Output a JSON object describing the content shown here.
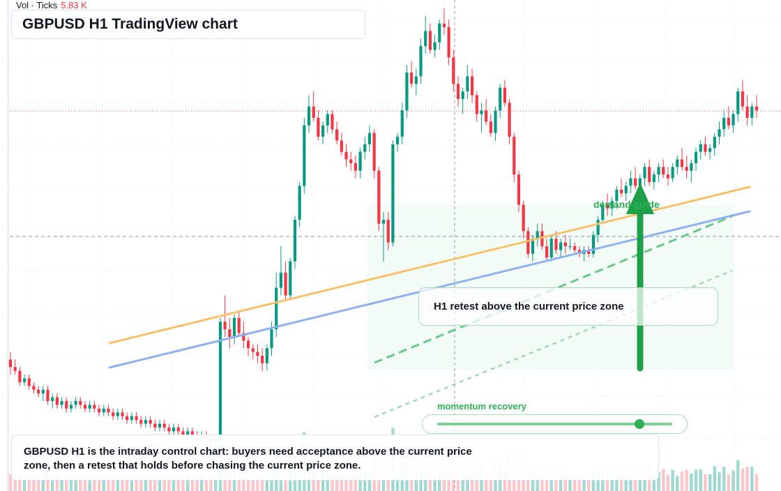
{
  "title": "GBPUSD H1 TradingView chart",
  "volume_legend": {
    "label": "Vol · Ticks",
    "value": "5.83 K"
  },
  "annotations": {
    "demand_label": "demand guide",
    "retest_label": "H1 retest above the current price zone",
    "momentum_label": "momentum recovery",
    "momentum_level": 0.86
  },
  "summary": "GBPUSD H1 is the intraday control chart: buyers need acceptance above the current price zone, then a retest that holds before chasing the current price zone.",
  "colors": {
    "up": "#089981",
    "down": "#f23645",
    "accent_green": "#2fae56",
    "trend_orange": "#f7c16b",
    "trend_blue": "#8fb0ee"
  },
  "chart_data": {
    "type": "candlestick",
    "symbol": "GBPUSD",
    "timeframe": "H1",
    "candles": [
      [
        100,
        102,
        96,
        98
      ],
      [
        98,
        100,
        96,
        97
      ],
      [
        97,
        98,
        93,
        94
      ],
      [
        94,
        96,
        93,
        95
      ],
      [
        95,
        96,
        92,
        93
      ],
      [
        93,
        94,
        91,
        92
      ],
      [
        92,
        93,
        90,
        91
      ],
      [
        91,
        93,
        89,
        92
      ],
      [
        92,
        93,
        88,
        89
      ],
      [
        89,
        91,
        87,
        90
      ],
      [
        90,
        91,
        87,
        88
      ],
      [
        88,
        90,
        87,
        89
      ],
      [
        89,
        90,
        86,
        87
      ],
      [
        87,
        89,
        86,
        88
      ],
      [
        88,
        90,
        87,
        89
      ],
      [
        89,
        90,
        87,
        88
      ],
      [
        88,
        89,
        86,
        87
      ],
      [
        87,
        89,
        86,
        88
      ],
      [
        88,
        89,
        86,
        87
      ],
      [
        87,
        88,
        85,
        86
      ],
      [
        86,
        88,
        85,
        87
      ],
      [
        87,
        88,
        85,
        86
      ],
      [
        86,
        87,
        84,
        85
      ],
      [
        85,
        87,
        84,
        86
      ],
      [
        86,
        87,
        84,
        85
      ],
      [
        85,
        86,
        83,
        84
      ],
      [
        84,
        86,
        83,
        85
      ],
      [
        85,
        86,
        83,
        84
      ],
      [
        84,
        85,
        82,
        83
      ],
      [
        83,
        85,
        82,
        84
      ],
      [
        84,
        85,
        82,
        83
      ],
      [
        83,
        84,
        81,
        82
      ],
      [
        82,
        84,
        81,
        83
      ],
      [
        83,
        84,
        81,
        82
      ],
      [
        82,
        83,
        80,
        81
      ],
      [
        81,
        83,
        80,
        82
      ],
      [
        82,
        83,
        80,
        81
      ],
      [
        81,
        82,
        79,
        80
      ],
      [
        80,
        82,
        79,
        81
      ],
      [
        81,
        82,
        79,
        80
      ],
      [
        80,
        81,
        78,
        79
      ],
      [
        79,
        81,
        78,
        80
      ],
      [
        80,
        81,
        78,
        79
      ],
      [
        79,
        80,
        77,
        78
      ],
      [
        78,
        80,
        77,
        79
      ],
      [
        79,
        111,
        78,
        110
      ],
      [
        110,
        117,
        106,
        108
      ],
      [
        108,
        111,
        103,
        106
      ],
      [
        106,
        112,
        104,
        111
      ],
      [
        111,
        113,
        106,
        107
      ],
      [
        107,
        110,
        103,
        105
      ],
      [
        105,
        106,
        101,
        103
      ],
      [
        103,
        104,
        100,
        102
      ],
      [
        102,
        104,
        99,
        101
      ],
      [
        101,
        103,
        97,
        99
      ],
      [
        99,
        104,
        97,
        103
      ],
      [
        103,
        110,
        101,
        108
      ],
      [
        108,
        123,
        106,
        119
      ],
      [
        119,
        130,
        117,
        123
      ],
      [
        123,
        126,
        116,
        117
      ],
      [
        117,
        127,
        116,
        126
      ],
      [
        126,
        138,
        124,
        137
      ],
      [
        137,
        147,
        135,
        146
      ],
      [
        146,
        164,
        144,
        162
      ],
      [
        162,
        170,
        160,
        167
      ],
      [
        167,
        171,
        163,
        164
      ],
      [
        164,
        166,
        158,
        159
      ],
      [
        159,
        163,
        157,
        162
      ],
      [
        162,
        166,
        160,
        165
      ],
      [
        165,
        166,
        160,
        161
      ],
      [
        161,
        163,
        157,
        158
      ],
      [
        158,
        160,
        154,
        155
      ],
      [
        155,
        157,
        151,
        153
      ],
      [
        153,
        155,
        150,
        152
      ],
      [
        152,
        154,
        148,
        150
      ],
      [
        150,
        156,
        148,
        155
      ],
      [
        155,
        159,
        153,
        157
      ],
      [
        157,
        162,
        155,
        160
      ],
      [
        160,
        161,
        148,
        150
      ],
      [
        150,
        151,
        134,
        136
      ],
      [
        136,
        139,
        126,
        137
      ],
      [
        137,
        139,
        129,
        131
      ],
      [
        131,
        158,
        130,
        157
      ],
      [
        157,
        160,
        155,
        159
      ],
      [
        159,
        168,
        157,
        166
      ],
      [
        166,
        178,
        164,
        176
      ],
      [
        176,
        179,
        172,
        173
      ],
      [
        173,
        177,
        170,
        175
      ],
      [
        175,
        185,
        173,
        183
      ],
      [
        183,
        191,
        181,
        187
      ],
      [
        187,
        189,
        181,
        182
      ],
      [
        182,
        186,
        180,
        184
      ],
      [
        184,
        190,
        182,
        189
      ],
      [
        189,
        193,
        186,
        188
      ],
      [
        188,
        190,
        178,
        180
      ],
      [
        180,
        182,
        171,
        173
      ],
      [
        173,
        175,
        167,
        169
      ],
      [
        169,
        172,
        165,
        171
      ],
      [
        171,
        178,
        169,
        175
      ],
      [
        175,
        177,
        168,
        170
      ],
      [
        170,
        171,
        163,
        165
      ],
      [
        165,
        168,
        160,
        166
      ],
      [
        166,
        169,
        162,
        163
      ],
      [
        163,
        165,
        159,
        160
      ],
      [
        160,
        167,
        158,
        166
      ],
      [
        166,
        173,
        164,
        172
      ],
      [
        172,
        174,
        167,
        168
      ],
      [
        168,
        169,
        157,
        159
      ],
      [
        159,
        160,
        147,
        149
      ],
      [
        149,
        150,
        139,
        141
      ],
      [
        141,
        142,
        132,
        134
      ],
      [
        134,
        135,
        127,
        128
      ],
      [
        128,
        133,
        126,
        132
      ],
      [
        132,
        136,
        130,
        134
      ],
      [
        134,
        136,
        129,
        130
      ],
      [
        130,
        132,
        126,
        127
      ],
      [
        127,
        133,
        126,
        132
      ],
      [
        132,
        134,
        128,
        129
      ],
      [
        129,
        132,
        127,
        131
      ],
      [
        131,
        133,
        128,
        130
      ],
      [
        130,
        132,
        129,
        130
      ],
      [
        130,
        131,
        128,
        129
      ],
      [
        129,
        130,
        127,
        128
      ],
      [
        128,
        130,
        126,
        129
      ],
      [
        129,
        130,
        127,
        128
      ],
      [
        128,
        134,
        127,
        133
      ],
      [
        133,
        138,
        131,
        137
      ],
      [
        137,
        142,
        136,
        141
      ],
      [
        141,
        144,
        138,
        140
      ],
      [
        140,
        143,
        138,
        142
      ],
      [
        142,
        146,
        140,
        145
      ],
      [
        145,
        148,
        143,
        144
      ],
      [
        144,
        147,
        142,
        146
      ],
      [
        146,
        150,
        144,
        148
      ],
      [
        148,
        151,
        145,
        146
      ],
      [
        146,
        149,
        144,
        148
      ],
      [
        148,
        152,
        146,
        151
      ],
      [
        151,
        153,
        146,
        147
      ],
      [
        147,
        150,
        145,
        149
      ],
      [
        149,
        152,
        147,
        151
      ],
      [
        151,
        153,
        148,
        149
      ],
      [
        149,
        151,
        146,
        148
      ],
      [
        148,
        152,
        147,
        151
      ],
      [
        151,
        154,
        149,
        153
      ],
      [
        153,
        156,
        150,
        151
      ],
      [
        151,
        154,
        148,
        150
      ],
      [
        150,
        153,
        147,
        152
      ],
      [
        152,
        156,
        150,
        155
      ],
      [
        155,
        158,
        153,
        157
      ],
      [
        157,
        159,
        154,
        155
      ],
      [
        155,
        157,
        153,
        156
      ],
      [
        156,
        160,
        154,
        159
      ],
      [
        159,
        163,
        157,
        161
      ],
      [
        161,
        166,
        159,
        164
      ],
      [
        164,
        167,
        161,
        162
      ],
      [
        162,
        166,
        160,
        165
      ],
      [
        165,
        172,
        163,
        171
      ],
      [
        171,
        174,
        166,
        167
      ],
      [
        167,
        170,
        162,
        164
      ],
      [
        164,
        168,
        162,
        167
      ],
      [
        167,
        170,
        164,
        166
      ]
    ],
    "volume_level_hint": "relative tick volume bars along the bottom",
    "reference_lines": [
      "horizontal dotted red current-price line",
      "horizontal dashed grey crosshair line"
    ],
    "trendlines": [
      "orange rising trendline",
      "blue rising trendline",
      "green dashed rising channel"
    ],
    "grid": true
  }
}
